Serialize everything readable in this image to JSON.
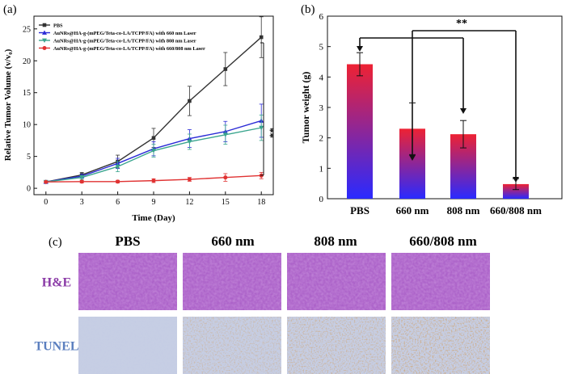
{
  "panel_labels": {
    "a": "(a)",
    "b": "(b)",
    "c": "(c)"
  },
  "colors": {
    "pbs": "#333333",
    "laser660": "#2b2bd6",
    "laser808": "#3aa58e",
    "laser660808": "#e03232",
    "bar_top": "#ee2233",
    "bar_bottom": "#2a2aff",
    "he_label": "#8a3aa6",
    "tunel_label": "#5b7fbf",
    "he_tissue": "#a85cc6",
    "tunel_tissue": "#c7cfe4"
  },
  "chart_data": [
    {
      "type": "line",
      "title": "",
      "xlabel": "Time (Day)",
      "ylabel": "Relative Tumor Volume (v/v₀)",
      "x": [
        0,
        3,
        6,
        9,
        12,
        15,
        18
      ],
      "xlim": [
        -1,
        19
      ],
      "ylim": [
        -1,
        27
      ],
      "xticks": [
        0,
        3,
        6,
        9,
        12,
        15,
        18
      ],
      "yticks": [
        0,
        5,
        10,
        15,
        20,
        25
      ],
      "series": [
        {
          "name": "PBS",
          "marker": "square",
          "values": [
            1.0,
            2.1,
            4.2,
            7.9,
            13.7,
            18.7,
            23.7
          ],
          "errors": [
            0.15,
            0.4,
            1.0,
            1.5,
            2.3,
            2.6,
            3.2
          ]
        },
        {
          "name": "AuNRs@HA-g-(mPEG/Teta-co-LA/TCPP/FA) with 660 nm Laser",
          "marker": "triangle-up",
          "values": [
            1.0,
            1.9,
            3.9,
            6.2,
            7.8,
            8.9,
            10.6
          ],
          "errors": [
            0.15,
            0.3,
            0.8,
            1.1,
            1.4,
            1.6,
            2.6
          ]
        },
        {
          "name": "AuNRs@HA-g-(mPEG/Teta-co-LA/TCPP/FA) with 808 nm Laser",
          "marker": "triangle-down",
          "values": [
            1.0,
            1.7,
            3.4,
            5.9,
            7.3,
            8.4,
            9.5
          ],
          "errors": [
            0.15,
            0.3,
            0.8,
            1.0,
            1.2,
            1.5,
            2.0
          ]
        },
        {
          "name": "AuNRs@HA-g-(mPEG/Teta-co-LA/TCPP/FA) with 660/808 nm Laser",
          "marker": "circle",
          "values": [
            1.0,
            1.05,
            1.05,
            1.2,
            1.4,
            1.7,
            2.0
          ],
          "errors": [
            0.1,
            0.2,
            0.2,
            0.3,
            0.3,
            0.6,
            0.5
          ]
        }
      ],
      "annotation": "**",
      "legend_position": "top-left"
    },
    {
      "type": "bar",
      "title": "",
      "xlabel": "",
      "ylabel": "Tumor weight (g)",
      "categories": [
        "PBS",
        "660 nm",
        "808 nm",
        "660/808 nm"
      ],
      "values": [
        4.42,
        2.3,
        2.12,
        0.48
      ],
      "errors": [
        0.38,
        0.85,
        0.45,
        0.18
      ],
      "ylim": [
        0,
        6
      ],
      "yticks": [
        0,
        1,
        2,
        3,
        4,
        5,
        6
      ],
      "annotation": "**"
    }
  ],
  "histology": {
    "columns": [
      "PBS",
      "660 nm",
      "808 nm",
      "660/808 nm"
    ],
    "rows": [
      "H&E",
      "TUNEL"
    ]
  }
}
